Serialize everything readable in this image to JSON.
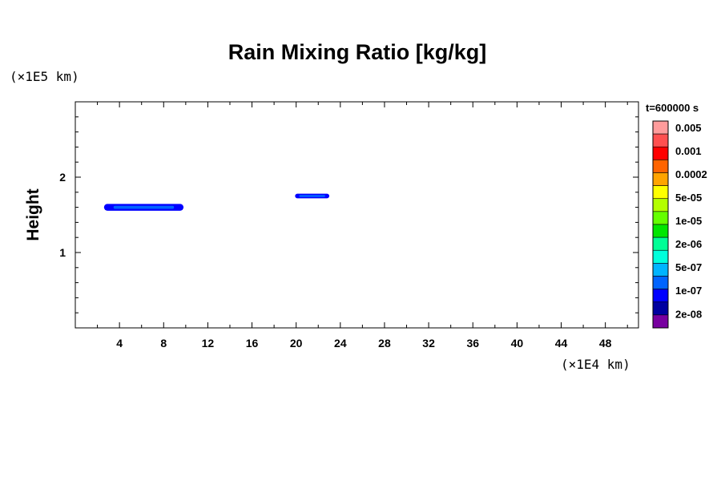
{
  "chart_data": {
    "type": "contour",
    "title": "Rain Mixing Ratio [kg/kg]",
    "ylabel": "Height",
    "y_unit": "(×1E5 km)",
    "x_unit": "(×1E4 km)",
    "time_label": "t=600000 s",
    "xlim": [
      0,
      51
    ],
    "ylim": [
      0,
      3
    ],
    "x_ticks": [
      4,
      8,
      12,
      16,
      20,
      24,
      28,
      32,
      36,
      40,
      44,
      48
    ],
    "y_ticks": [
      1,
      2
    ],
    "colorbar": {
      "colors": [
        "#ff9c9c",
        "#ff5050",
        "#ff0000",
        "#ff6400",
        "#ffa400",
        "#ffff00",
        "#b4ff00",
        "#64ff00",
        "#00e600",
        "#00ff96",
        "#00ffdc",
        "#00b4ff",
        "#0064ff",
        "#0000ff",
        "#0000a0",
        "#7800a0"
      ],
      "labels": [
        "0.005",
        "0.001",
        "0.0002",
        "5e-05",
        "1e-05",
        "2e-06",
        "5e-07",
        "1e-07",
        "2e-08"
      ]
    },
    "features": [
      {
        "name": "rain-band-1",
        "x_start": 2.6,
        "x_end": 9.8,
        "y_center": 1.6,
        "thickness": 0.09,
        "color": "#0000ff",
        "core_color": "#0064ff"
      },
      {
        "name": "rain-band-2",
        "x_start": 19.9,
        "x_end": 23.0,
        "y_center": 1.75,
        "thickness": 0.06,
        "color": "#0000ff",
        "core_color": "#0064ff"
      }
    ]
  }
}
